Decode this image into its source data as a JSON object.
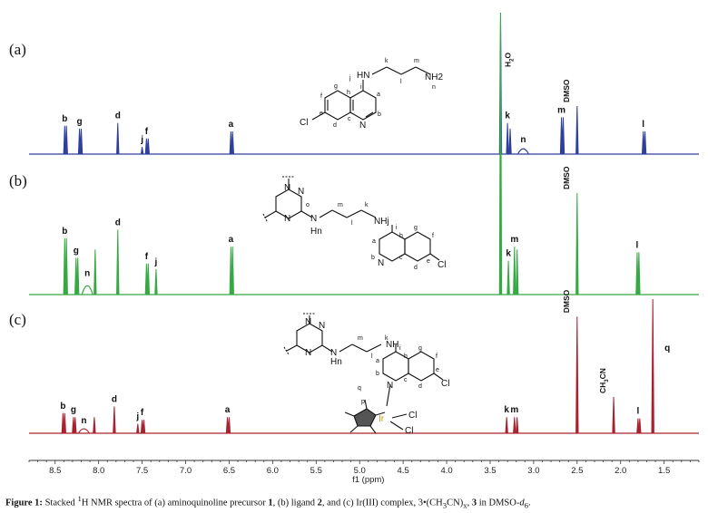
{
  "chart_data": {
    "type": "line",
    "xlabel": "f1 (ppm)",
    "xlim": [
      8.8,
      1.1
    ],
    "xticks": [
      8.5,
      8.0,
      7.5,
      7.0,
      6.5,
      6.0,
      5.5,
      5.0,
      4.5,
      4.0,
      3.5,
      3.0,
      2.5,
      2.0,
      1.5
    ],
    "grid": false,
    "legend": "none",
    "colors": {
      "a": "#2f3f9c",
      "b": "#36a844",
      "c": "#a8232f"
    },
    "panels": [
      {
        "id": "a",
        "label": "(a)",
        "peaks": [
          {
            "x": 8.39,
            "h": 0.2,
            "label": "b"
          },
          {
            "x": 8.37,
            "h": 0.2
          },
          {
            "x": 8.22,
            "h": 0.18,
            "label": "g"
          },
          {
            "x": 8.2,
            "h": 0.18
          },
          {
            "x": 7.78,
            "h": 0.22,
            "label": "d"
          },
          {
            "x": 7.5,
            "h": 0.05,
            "label": "j"
          },
          {
            "x": 7.45,
            "h": 0.11,
            "label": "f"
          },
          {
            "x": 7.43,
            "h": 0.11
          },
          {
            "x": 6.48,
            "h": 0.16,
            "label": "a"
          },
          {
            "x": 6.46,
            "h": 0.16
          },
          {
            "x": 3.38,
            "h": 1.0
          },
          {
            "x": 3.3,
            "h": 0.22,
            "label": "k"
          },
          {
            "x": 3.27,
            "h": 0.18
          },
          {
            "x": 3.12,
            "h": 0.05,
            "label": "n"
          },
          {
            "x": 2.68,
            "h": 0.26,
            "label": "m"
          },
          {
            "x": 2.66,
            "h": 0.26
          },
          {
            "x": 2.5,
            "h": 0.34,
            "label": "DMSO"
          },
          {
            "x": 1.74,
            "h": 0.16,
            "label": "l"
          },
          {
            "x": 1.72,
            "h": 0.16
          }
        ]
      },
      {
        "id": "b",
        "label": "(b)",
        "peaks": [
          {
            "x": 8.39,
            "h": 0.2,
            "label": "b"
          },
          {
            "x": 8.37,
            "h": 0.2
          },
          {
            "x": 8.26,
            "h": 0.13,
            "label": "g"
          },
          {
            "x": 8.24,
            "h": 0.13
          },
          {
            "x": 8.13,
            "h": 0.05,
            "label": "n"
          },
          {
            "x": 8.04,
            "h": 0.16
          },
          {
            "x": 7.78,
            "h": 0.23,
            "label": "d"
          },
          {
            "x": 7.45,
            "h": 0.11,
            "label": "f"
          },
          {
            "x": 7.43,
            "h": 0.11
          },
          {
            "x": 7.34,
            "h": 0.09,
            "label": "j"
          },
          {
            "x": 6.48,
            "h": 0.17,
            "label": "a"
          },
          {
            "x": 6.46,
            "h": 0.17
          },
          {
            "x": 3.38,
            "h": 1.0,
            "label": "H2O"
          },
          {
            "x": 3.29,
            "h": 0.12,
            "label": "k"
          },
          {
            "x": 3.22,
            "h": 0.17,
            "label": "m"
          },
          {
            "x": 3.19,
            "h": 0.16
          },
          {
            "x": 2.5,
            "h": 0.36,
            "label": "DMSO"
          },
          {
            "x": 1.81,
            "h": 0.15,
            "label": "l"
          },
          {
            "x": 1.79,
            "h": 0.15
          }
        ]
      },
      {
        "id": "c",
        "label": "(c)",
        "peaks": [
          {
            "x": 8.41,
            "h": 0.15,
            "label": "b"
          },
          {
            "x": 8.39,
            "h": 0.15
          },
          {
            "x": 8.29,
            "h": 0.12,
            "label": "g"
          },
          {
            "x": 8.27,
            "h": 0.12
          },
          {
            "x": 8.17,
            "h": 0.04,
            "label": "n"
          },
          {
            "x": 8.05,
            "h": 0.12
          },
          {
            "x": 7.82,
            "h": 0.2,
            "label": "d"
          },
          {
            "x": 7.55,
            "h": 0.07,
            "label": "j"
          },
          {
            "x": 7.5,
            "h": 0.1,
            "label": "f"
          },
          {
            "x": 7.48,
            "h": 0.1
          },
          {
            "x": 6.52,
            "h": 0.12,
            "label": "a"
          },
          {
            "x": 6.5,
            "h": 0.12
          },
          {
            "x": 3.31,
            "h": 0.12,
            "label": "k"
          },
          {
            "x": 3.22,
            "h": 0.12,
            "label": "m"
          },
          {
            "x": 3.19,
            "h": 0.12
          },
          {
            "x": 2.5,
            "h": 0.87,
            "label": "DMSO"
          },
          {
            "x": 2.08,
            "h": 0.27,
            "label": "CH3CN"
          },
          {
            "x": 1.8,
            "h": 0.11,
            "label": "l"
          },
          {
            "x": 1.78,
            "h": 0.11
          },
          {
            "x": 1.63,
            "h": 1.0,
            "label": "q"
          }
        ]
      }
    ]
  },
  "structures": {
    "a": {
      "atoms": [
        "Cl",
        "N",
        "HN",
        "NH2"
      ],
      "locants": [
        "f",
        "g",
        "h",
        "i",
        "a",
        "b",
        "c",
        "d",
        "e",
        "j",
        "k",
        "l",
        "m",
        "n"
      ]
    },
    "b": {
      "atoms": [
        "N",
        "N",
        "N",
        "N",
        "N",
        "NHj",
        "Hn",
        "Cl"
      ],
      "locants": [
        "o",
        "m",
        "l",
        "k",
        "a",
        "b",
        "c",
        "d",
        "e",
        "f",
        "g",
        "h",
        "i"
      ]
    },
    "c": {
      "atoms": [
        "N",
        "N",
        "N",
        "N",
        "NH",
        "Hn",
        "N",
        "Cl",
        "Cl",
        "Ir",
        "Cl"
      ],
      "locants": [
        "m",
        "l",
        "k",
        "a",
        "b",
        "c",
        "d",
        "e",
        "f",
        "g",
        "h",
        "i",
        "p",
        "q"
      ]
    }
  },
  "caption": {
    "lead": "Figure 1:",
    "text_1": " Stacked ",
    "sup_1": "1",
    "text_2": "H NMR spectra of (a) aminoquinoline precursor ",
    "num_1": "1",
    "text_3": ", (b) ligand ",
    "num_2": "2",
    "text_4": ", and (c) Ir(III) complex, 3•(CH",
    "sub_3": "3",
    "text_5": "CN)",
    "sub_x": "x",
    "text_6": ", ",
    "num_3": "3",
    "text_7": " in DMSO-",
    "sub_d6": "d",
    "sub_6": "6",
    "text_8": "."
  }
}
